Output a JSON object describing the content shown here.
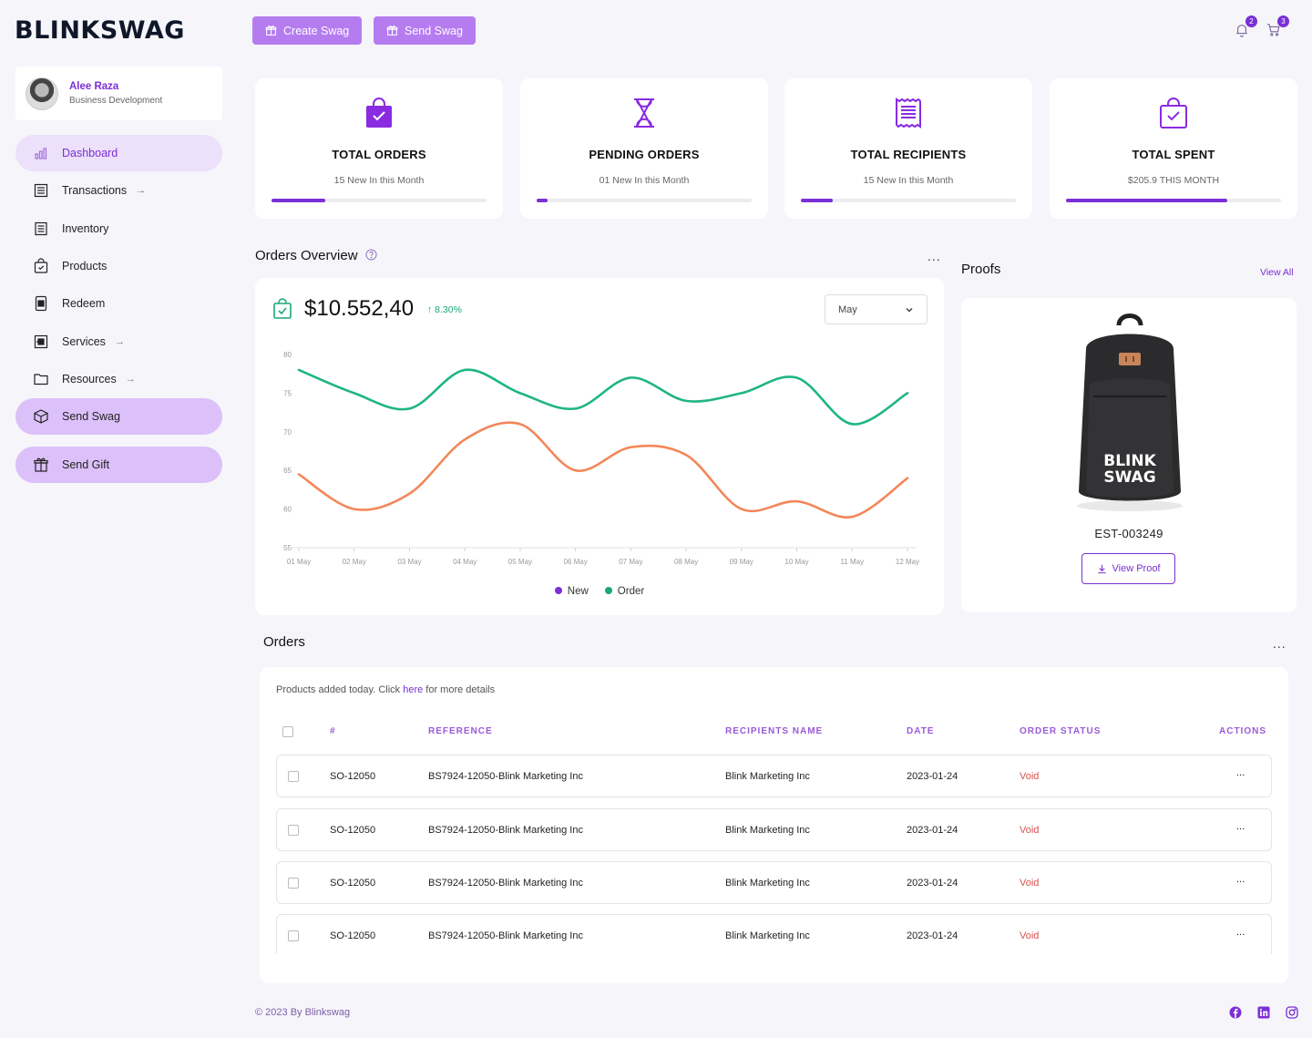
{
  "brand": {
    "logo_text": "BLINKSWAG"
  },
  "header": {
    "create_swag": "Create Swag",
    "send_swag": "Send Swag",
    "notifications_count": "2",
    "cart_count": "3"
  },
  "profile": {
    "name": "Alee Raza",
    "role": "Business Development"
  },
  "sidebar": {
    "items": [
      {
        "label": "Dashboard",
        "icon": "bar-chart-icon"
      },
      {
        "label": "Transactions",
        "icon": "receipt-icon",
        "arrow": "→"
      },
      {
        "label": "Inventory",
        "icon": "list-icon"
      },
      {
        "label": "Products",
        "icon": "shopping-bag-icon"
      },
      {
        "label": "Redeem",
        "icon": "device-icon"
      },
      {
        "label": "Services",
        "icon": "services-icon",
        "arrow": "→"
      },
      {
        "label": "Resources",
        "icon": "folder-icon",
        "arrow": "→"
      },
      {
        "label": "Send Swag",
        "icon": "box-icon"
      },
      {
        "label": "Send Gift",
        "icon": "gift-icon"
      }
    ]
  },
  "stats": [
    {
      "title": "TOTAL ORDERS",
      "subtitle": "15 New In this Month",
      "progress": 0.25,
      "icon": "bag-check-icon"
    },
    {
      "title": "PENDING ORDERS",
      "subtitle": "01 New In this Month",
      "progress": 0.05,
      "icon": "hourglass-icon"
    },
    {
      "title": "TOTAL RECIPIENTS",
      "subtitle": "15 New In this Month",
      "progress": 0.15,
      "icon": "document-icon"
    },
    {
      "title": "TOTAL SPENT",
      "subtitle": "$205.9 THIS MONTH",
      "progress": 0.75,
      "icon": "bag-outline-icon"
    }
  ],
  "overview": {
    "title": "Orders Overview",
    "amount": "$10.552,40",
    "growth": "↑ 8.30%",
    "month": "May",
    "more": "..."
  },
  "chart_data": {
    "type": "line",
    "x": [
      "01 May",
      "02 May",
      "03 May",
      "04 May",
      "05 May",
      "06 May",
      "07 May",
      "08 May",
      "09 May",
      "10 May",
      "11 May",
      "12 May"
    ],
    "ylim": [
      55,
      80
    ],
    "yticks": [
      80,
      75,
      70,
      65,
      60,
      55
    ],
    "series": [
      {
        "name": "New",
        "color": "#7b2fd6",
        "line_color": "#f3875a",
        "values": [
          64.5,
          60,
          62,
          69,
          71,
          65,
          68,
          67,
          60,
          61,
          59,
          64
        ]
      },
      {
        "name": "Order",
        "color": "#1aa874",
        "line_color": "#1fb584",
        "values": [
          78,
          75,
          73,
          78,
          75,
          73,
          77,
          74,
          75,
          77,
          71,
          75
        ]
      }
    ],
    "legend": "bottom"
  },
  "proofs": {
    "title": "Proofs",
    "view_all": "View All",
    "item_id": "EST-003249",
    "view_proof": "View Proof",
    "bag_text": "BLINK SWAG"
  },
  "orders": {
    "title": "Orders",
    "more": "...",
    "note_prefix": "Products added today. Click ",
    "note_link": "here",
    "note_suffix": " for more details",
    "columns": [
      "#",
      "REFERENCE",
      "RECIPIENTS NAME",
      "DATE",
      "ORDER STATUS",
      "ACTIONS"
    ],
    "rows": [
      {
        "id": "SO-12050",
        "reference": "BS7924-12050-Blink Marketing Inc",
        "recipient": "Blink Marketing Inc",
        "date": "2023-01-24",
        "status": "Void",
        "action": "..."
      },
      {
        "id": "SO-12050",
        "reference": "BS7924-12050-Blink Marketing Inc",
        "recipient": "Blink Marketing Inc",
        "date": "2023-01-24",
        "status": "Void",
        "action": "..."
      },
      {
        "id": "SO-12050",
        "reference": "BS7924-12050-Blink Marketing Inc",
        "recipient": "Blink Marketing Inc",
        "date": "2023-01-24",
        "status": "Void",
        "action": "..."
      },
      {
        "id": "SO-12050",
        "reference": "BS7924-12050-Blink Marketing Inc",
        "recipient": "Blink Marketing Inc",
        "date": "2023-01-24",
        "status": "Void",
        "action": "..."
      }
    ]
  },
  "footer": {
    "copyright": "© 2023 By Blinkswag"
  },
  "colors": {
    "accent": "#7b2fd6",
    "button": "#b57cf0",
    "success": "#1aa874",
    "danger": "#d9534f"
  }
}
